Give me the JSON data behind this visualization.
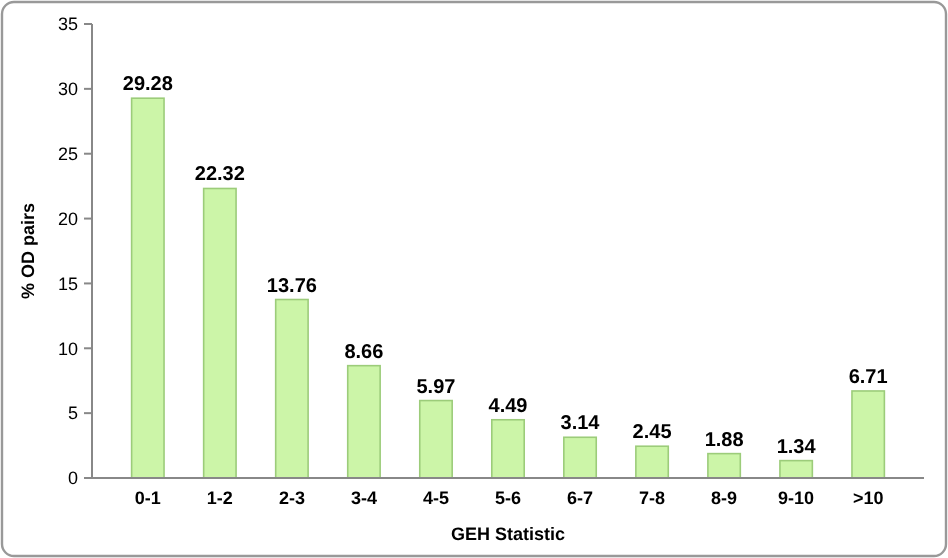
{
  "chart_data": {
    "type": "bar",
    "xlabel": "GEH Statistic",
    "ylabel": "% OD pairs",
    "categories": [
      "0-1",
      "1-2",
      "2-3",
      "3-4",
      "4-5",
      "5-6",
      "6-7",
      "7-8",
      "8-9",
      "9-10",
      ">10"
    ],
    "values": [
      29.28,
      22.32,
      13.76,
      8.66,
      5.97,
      4.49,
      3.14,
      2.45,
      1.88,
      1.34,
      6.71
    ],
    "color": "#ccf5a8",
    "ylim": [
      0,
      35
    ],
    "yticks": [
      0,
      5,
      10,
      15,
      20,
      25,
      30,
      35
    ],
    "grid": false,
    "data_labels": true
  }
}
